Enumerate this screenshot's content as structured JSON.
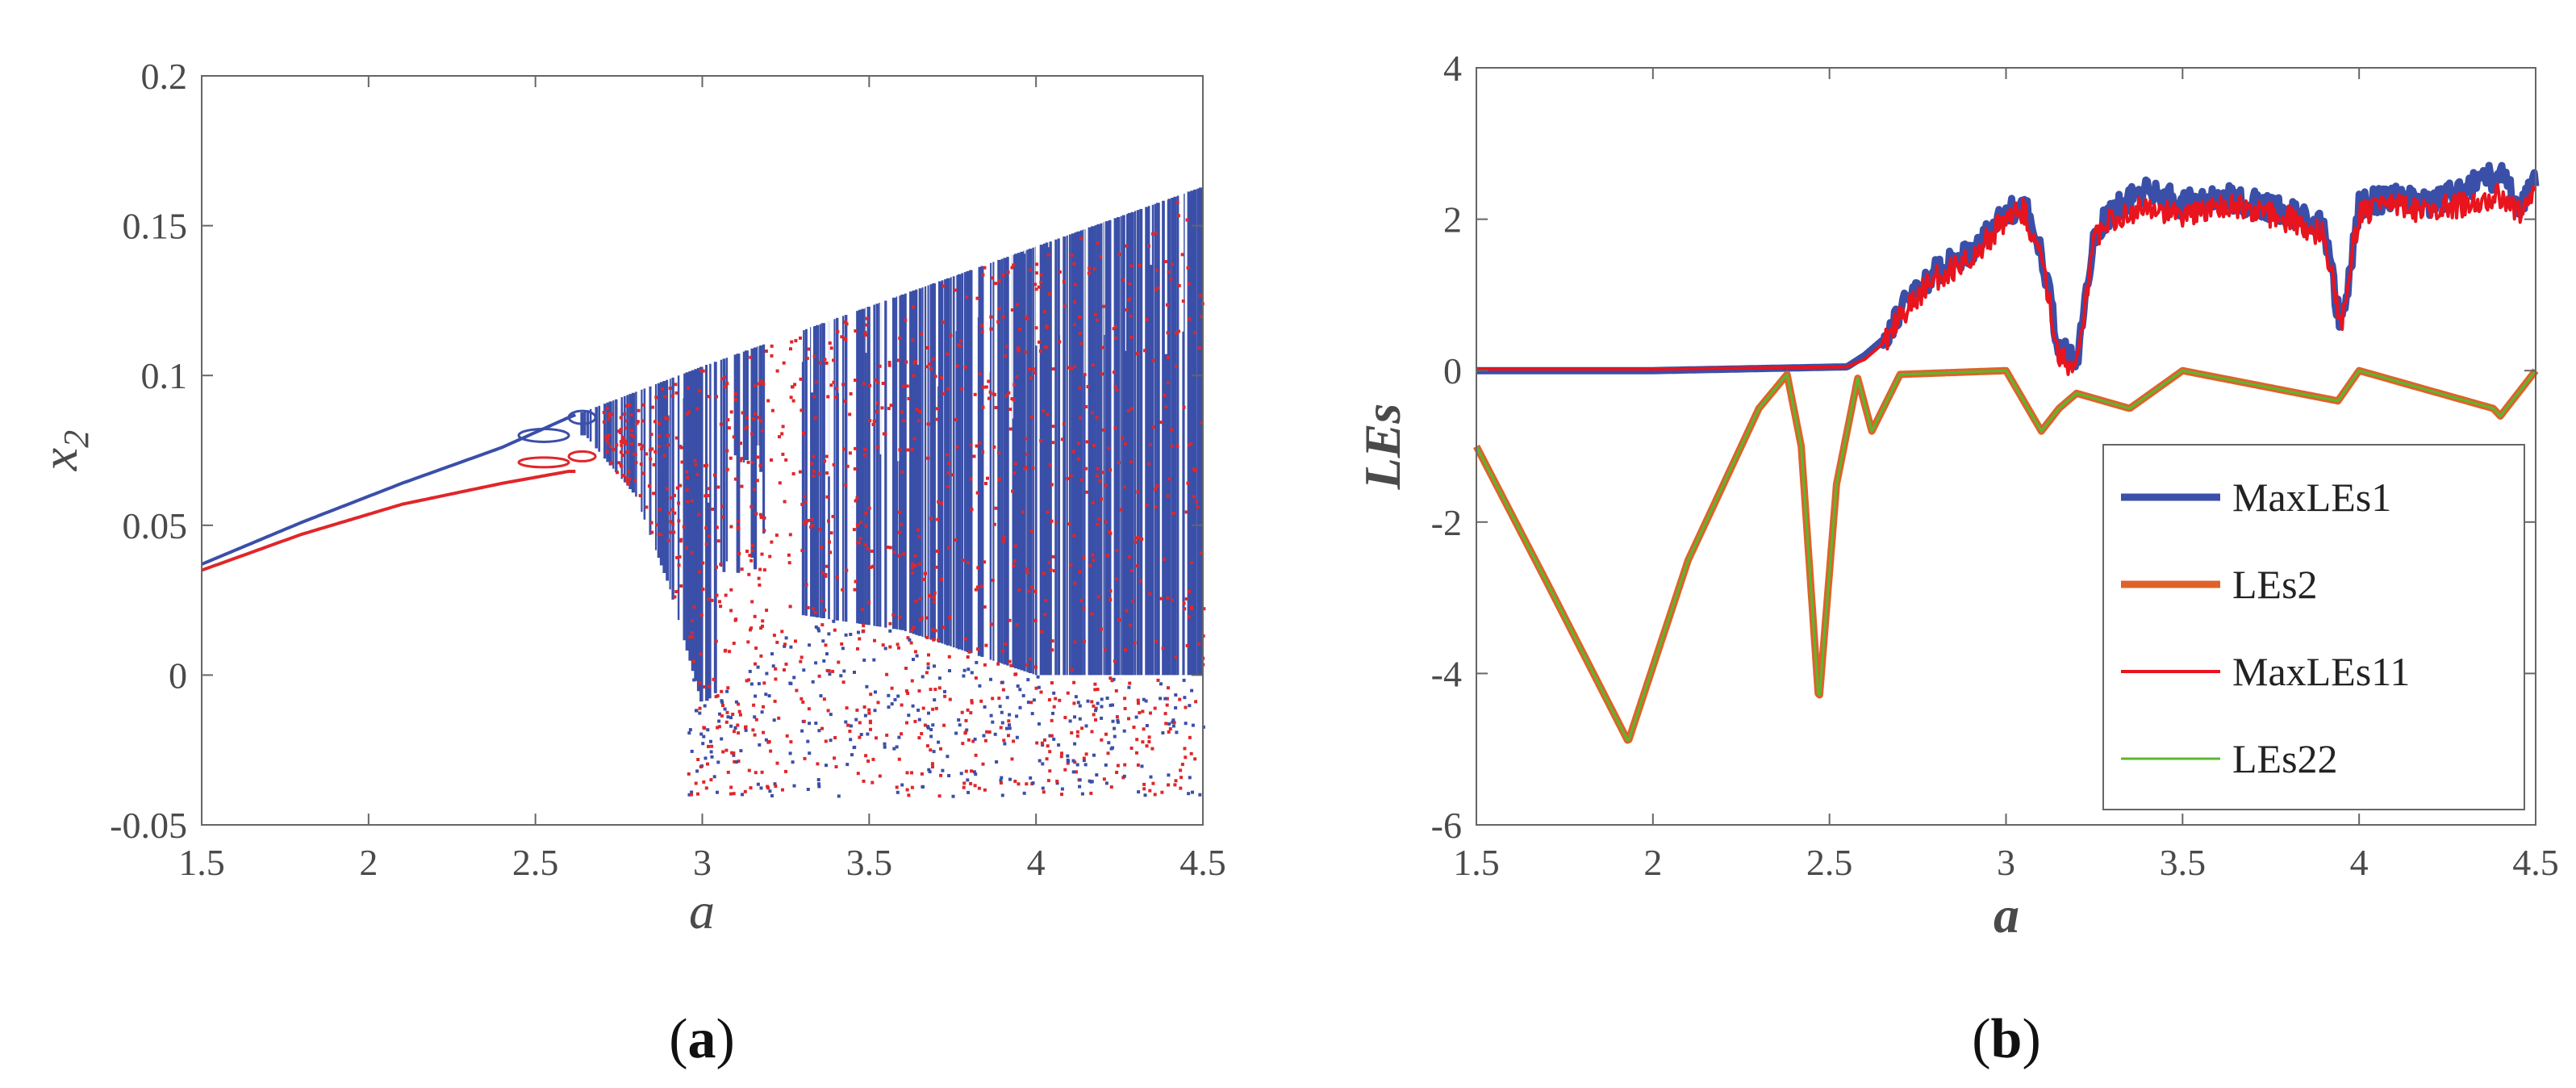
{
  "chart_data": [
    {
      "type": "scatter",
      "panel_label": "(a)",
      "panel_letter": "a",
      "xlabel": "a",
      "ylabel": "x",
      "ylabel_subscript": "2",
      "xlim": [
        1.5,
        4.5
      ],
      "ylim": [
        -0.05,
        0.2
      ],
      "xticks": [
        "1.5",
        "2",
        "2.5",
        "3",
        "3.5",
        "4",
        "4.5"
      ],
      "yticks": [
        "-0.05",
        "0",
        "0.05",
        "0.1",
        "0.15",
        "0.2"
      ],
      "grid": false,
      "series": [
        {
          "color": "#3a4fa8",
          "upper_branch": {
            "x": [
              1.5,
              1.8,
              2.1,
              2.4,
              2.6,
              3.0,
              3.5,
              4.0,
              4.5
            ],
            "y": [
              0.037,
              0.051,
              0.064,
              0.076,
              0.086,
              0.103,
              0.123,
              0.143,
              0.163
            ]
          },
          "chaotic_lower_edge": {
            "x": [
              2.65,
              2.8,
              2.9,
              3.0,
              3.3,
              3.6,
              4.0,
              4.5
            ],
            "y": [
              0.08,
              0.06,
              0.03,
              -0.01,
              0.02,
              0.015,
              0.0,
              0.0
            ]
          }
        },
        {
          "color": "#e0262a",
          "lower_branch": {
            "x": [
              1.5,
              1.8,
              2.1,
              2.4,
              2.6
            ],
            "y": [
              0.035,
              0.047,
              0.057,
              0.064,
              0.068
            ]
          }
        }
      ]
    },
    {
      "type": "line",
      "panel_label": "(b)",
      "panel_letter": "b",
      "xlabel": "a",
      "ylabel": "LEs",
      "xlim": [
        1.5,
        4.5
      ],
      "ylim": [
        -6,
        4
      ],
      "xticks": [
        "1.5",
        "2",
        "2.5",
        "3",
        "3.5",
        "4",
        "4.5"
      ],
      "yticks": [
        "-6",
        "-4",
        "-2",
        "0",
        "2",
        "4"
      ],
      "grid": false,
      "legend_position": "bottom-right",
      "series": [
        {
          "name": "MaxLEs1",
          "color": "#3a4fa8",
          "x": [
            1.5,
            2.0,
            2.55,
            2.6,
            2.65,
            2.7,
            2.75,
            2.8,
            2.9,
            3.0,
            3.05,
            3.1,
            3.15,
            3.2,
            3.25,
            3.3,
            3.4,
            3.5,
            3.6,
            3.7,
            3.8,
            3.9,
            3.95,
            4.0,
            4.1,
            4.2,
            4.3,
            4.4,
            4.45,
            4.5
          ],
          "y": [
            0.0,
            0.0,
            0.05,
            0.2,
            0.4,
            0.8,
            1.1,
            1.3,
            1.6,
            2.1,
            2.2,
            1.6,
            0.3,
            0.1,
            1.8,
            2.1,
            2.4,
            2.2,
            2.3,
            2.2,
            2.1,
            1.9,
            0.5,
            2.2,
            2.3,
            2.2,
            2.4,
            2.6,
            2.2,
            2.5
          ]
        },
        {
          "name": "LEs2",
          "color": "#e0622a",
          "x": [
            1.5,
            1.7,
            1.93,
            2.1,
            2.3,
            2.38,
            2.42,
            2.47,
            2.52,
            2.58,
            2.62,
            2.7,
            3.0,
            3.1,
            3.15,
            3.2,
            3.35,
            3.5,
            3.94,
            4.0,
            4.38,
            4.4,
            4.5
          ],
          "y": [
            -1.0,
            -2.8,
            -4.9,
            -2.5,
            -0.5,
            -0.05,
            -1.0,
            -4.4,
            -1.5,
            -0.1,
            -0.8,
            -0.05,
            0.0,
            -0.8,
            -0.5,
            -0.3,
            -0.5,
            0.0,
            -0.4,
            0.0,
            -0.5,
            -0.6,
            0.0
          ]
        },
        {
          "name": "MaxLEs11",
          "color": "#e8141e",
          "x": [
            1.5,
            2.0,
            2.55,
            2.6,
            2.65,
            2.7,
            2.75,
            2.8,
            2.9,
            3.0,
            3.05,
            3.1,
            3.15,
            3.2,
            3.25,
            3.3,
            3.4,
            3.5,
            3.6,
            3.7,
            3.8,
            3.9,
            3.95,
            4.0,
            4.1,
            4.2,
            4.3,
            4.4,
            4.45,
            4.5
          ],
          "y": [
            0.02,
            0.02,
            0.05,
            0.15,
            0.35,
            0.7,
            1.0,
            1.2,
            1.5,
            2.0,
            2.1,
            1.5,
            0.2,
            0.05,
            1.7,
            2.0,
            2.2,
            2.0,
            2.2,
            2.1,
            2.0,
            1.8,
            0.6,
            2.1,
            2.2,
            2.1,
            2.2,
            2.3,
            2.1,
            2.3
          ]
        },
        {
          "name": "LEs22",
          "color": "#5ab82e",
          "x": [
            1.5,
            1.7,
            1.93,
            2.1,
            2.3,
            2.38,
            2.42,
            2.47,
            2.52,
            2.58,
            2.62,
            2.7,
            3.0,
            3.1,
            3.15,
            3.2,
            3.35,
            3.5,
            3.94,
            4.0,
            4.38,
            4.4,
            4.5
          ],
          "y": [
            -1.0,
            -2.8,
            -4.9,
            -2.5,
            -0.5,
            -0.05,
            -1.0,
            -4.4,
            -1.5,
            -0.1,
            -0.8,
            -0.05,
            0.0,
            -0.8,
            -0.5,
            -0.3,
            -0.5,
            0.0,
            -0.4,
            0.0,
            -0.5,
            -0.6,
            0.0
          ]
        }
      ]
    }
  ]
}
